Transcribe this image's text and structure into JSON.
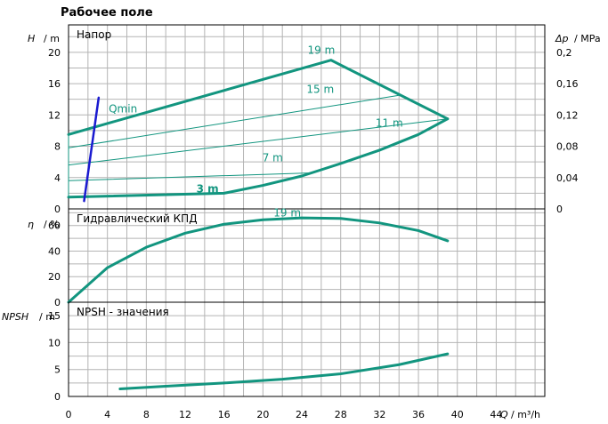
{
  "title": "Рабочее поле",
  "colors": {
    "curve": "#12957f",
    "qmin": "#1a1ad0",
    "grid": "#b4b4b4",
    "frame": "#000000"
  },
  "chart_data": {
    "type": "line",
    "x_axis": {
      "label_var": "Q",
      "label_unit": "m³/h",
      "range": [
        0,
        49
      ],
      "ticks": [
        "0",
        "4",
        "8",
        "12",
        "16",
        "20",
        "24",
        "28",
        "32",
        "36",
        "40",
        "44"
      ],
      "grid_step": 2
    },
    "panels": [
      {
        "name": "head",
        "title": "Напор",
        "y_label_var": "H",
        "y_label_unit": "m",
        "y_range": [
          0,
          23.5
        ],
        "y_ticks": [
          "0",
          "4",
          "8",
          "12",
          "16",
          "20"
        ],
        "y_grid_step": 2,
        "right_axis": {
          "label_var": "Δp",
          "label_unit": "MPa",
          "range": [
            0,
            0.235
          ],
          "ticks": [
            "0",
            "0,04",
            "0,08",
            "0,12",
            "0,16",
            "0,2"
          ]
        },
        "series": [
          {
            "name": "19 m",
            "style": "thick",
            "points": [
              [
                0,
                9.5
              ],
              [
                27,
                19
              ],
              [
                39,
                11.5
              ]
            ]
          },
          {
            "name": "3 m",
            "style": "thick",
            "points": [
              [
                0,
                1.5
              ],
              [
                16,
                2
              ],
              [
                20,
                3
              ],
              [
                24,
                4.2
              ],
              [
                28,
                5.8
              ],
              [
                32,
                7.5
              ],
              [
                36,
                9.5
              ],
              [
                39,
                11.5
              ]
            ]
          },
          {
            "name": "15 m",
            "style": "thin",
            "points": [
              [
                0,
                7.8
              ],
              [
                34,
                14.5
              ]
            ]
          },
          {
            "name": "11 m",
            "style": "thin",
            "points": [
              [
                0,
                5.6
              ],
              [
                39,
                11.5
              ]
            ]
          },
          {
            "name": "7 m",
            "style": "thin",
            "points": [
              [
                0,
                3.6
              ],
              [
                25,
                4.6
              ]
            ]
          },
          {
            "name": "",
            "style": "thin",
            "points": [
              [
                0,
                9.5
              ],
              [
                0,
                1.5
              ]
            ]
          },
          {
            "name": "Qmin",
            "style": "qmin",
            "points": [
              [
                1.6,
                1
              ],
              [
                3.1,
                14.2
              ]
            ]
          }
        ],
        "annotations": [
          "19 m",
          "15 m",
          "11 m",
          "7 m",
          "3 m",
          "Qmin"
        ]
      },
      {
        "name": "efficiency",
        "title": "Гидравлический КПД",
        "y_label_var": "η",
        "y_label_unit": "%",
        "y_range": [
          0,
          73
        ],
        "y_ticks": [
          "0",
          "20",
          "40",
          "60"
        ],
        "y_grid_step": 10,
        "series": [
          {
            "name": "19 m",
            "style": "thick",
            "points": [
              [
                0,
                0
              ],
              [
                4,
                27
              ],
              [
                8,
                43
              ],
              [
                12,
                54
              ],
              [
                16,
                61
              ],
              [
                20,
                64.5
              ],
              [
                24,
                66
              ],
              [
                28,
                65.5
              ],
              [
                32,
                62
              ],
              [
                36,
                56
              ],
              [
                39,
                48
              ]
            ]
          }
        ],
        "annotations": [
          "19 m"
        ]
      },
      {
        "name": "npsh",
        "title": "NPSH - значения",
        "y_label_var": "NPSH",
        "y_label_unit": "m",
        "y_range": [
          0,
          17.5
        ],
        "y_ticks": [
          "0",
          "5",
          "10",
          "15"
        ],
        "y_grid_step": 2.5,
        "series": [
          {
            "name": "",
            "style": "thick",
            "points": [
              [
                5.3,
                1.4
              ],
              [
                10,
                1.9
              ],
              [
                16,
                2.5
              ],
              [
                22,
                3.2
              ],
              [
                28,
                4.2
              ],
              [
                34,
                5.9
              ],
              [
                39,
                7.9
              ]
            ]
          }
        ],
        "annotations": []
      }
    ]
  }
}
